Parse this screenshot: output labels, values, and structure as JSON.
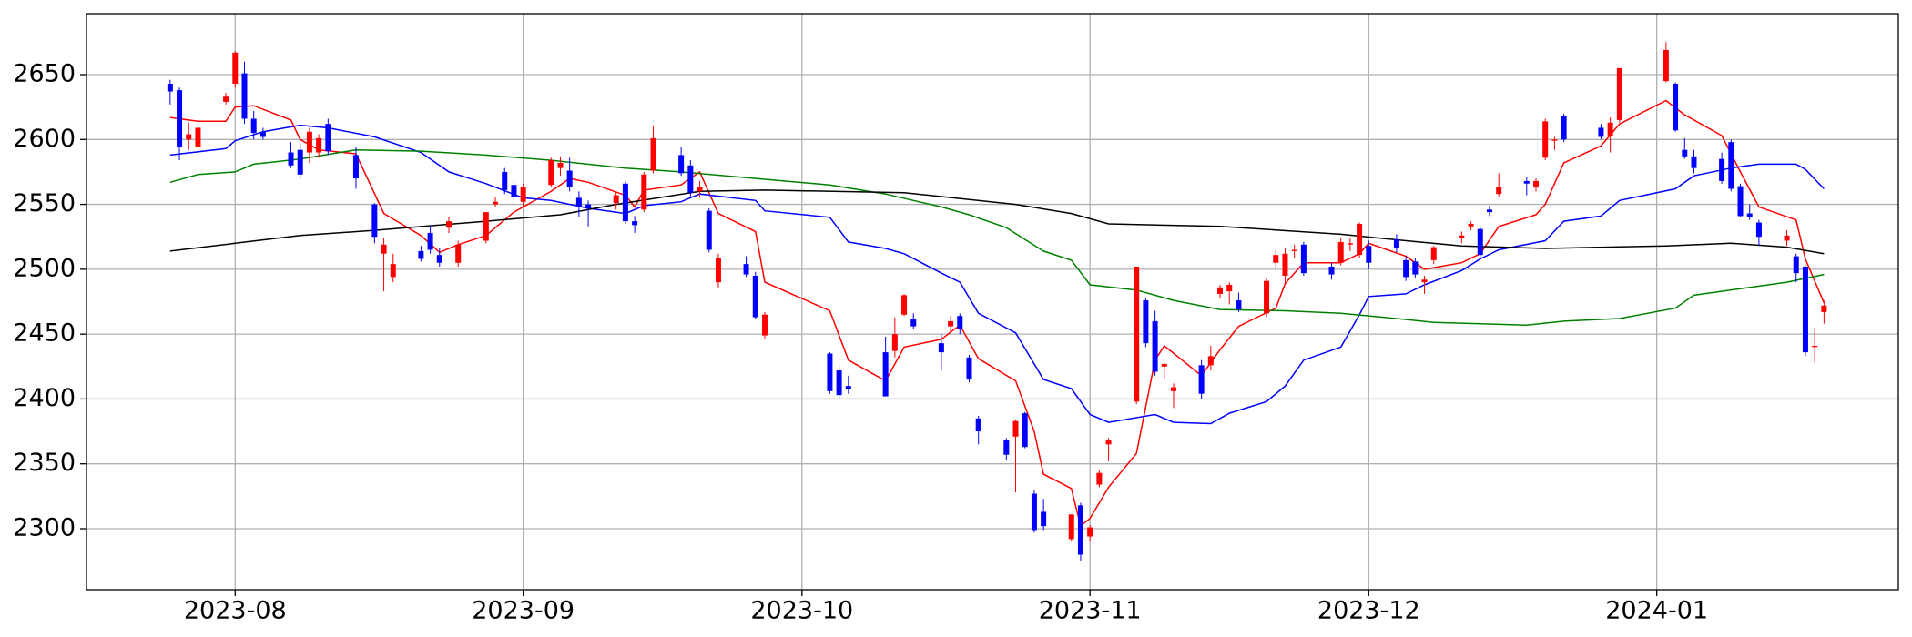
{
  "chart_data": {
    "type": "candlestick",
    "x": [
      "2023-07-25",
      "2023-07-26",
      "2023-07-27",
      "2023-07-28",
      "2023-07-31",
      "2023-08-01",
      "2023-08-02",
      "2023-08-03",
      "2023-08-04",
      "2023-08-07",
      "2023-08-08",
      "2023-08-09",
      "2023-08-10",
      "2023-08-11",
      "2023-08-14",
      "2023-08-16",
      "2023-08-17",
      "2023-08-18",
      "2023-08-21",
      "2023-08-22",
      "2023-08-23",
      "2023-08-24",
      "2023-08-25",
      "2023-08-28",
      "2023-08-29",
      "2023-08-30",
      "2023-08-31",
      "2023-09-01",
      "2023-09-04",
      "2023-09-05",
      "2023-09-06",
      "2023-09-07",
      "2023-09-08",
      "2023-09-11",
      "2023-09-12",
      "2023-09-13",
      "2023-09-14",
      "2023-09-15",
      "2023-09-18",
      "2023-09-19",
      "2023-09-20",
      "2023-09-21",
      "2023-09-22",
      "2023-09-25",
      "2023-09-26",
      "2023-09-27",
      "2023-10-04",
      "2023-10-05",
      "2023-10-06",
      "2023-10-10",
      "2023-10-11",
      "2023-10-12",
      "2023-10-13",
      "2023-10-16",
      "2023-10-17",
      "2023-10-18",
      "2023-10-19",
      "2023-10-20",
      "2023-10-23",
      "2023-10-24",
      "2023-10-25",
      "2023-10-26",
      "2023-10-27",
      "2023-10-30",
      "2023-10-31",
      "2023-11-01",
      "2023-11-02",
      "2023-11-03",
      "2023-11-06",
      "2023-11-07",
      "2023-11-08",
      "2023-11-09",
      "2023-11-10",
      "2023-11-13",
      "2023-11-14",
      "2023-11-15",
      "2023-11-16",
      "2023-11-17",
      "2023-11-20",
      "2023-11-21",
      "2023-11-22",
      "2023-11-23",
      "2023-11-24",
      "2023-11-27",
      "2023-11-28",
      "2023-11-29",
      "2023-11-30",
      "2023-12-01",
      "2023-12-04",
      "2023-12-05",
      "2023-12-06",
      "2023-12-07",
      "2023-12-08",
      "2023-12-11",
      "2023-12-12",
      "2023-12-13",
      "2023-12-14",
      "2023-12-15",
      "2023-12-18",
      "2023-12-19",
      "2023-12-20",
      "2023-12-21",
      "2023-12-22",
      "2023-12-26",
      "2023-12-27",
      "2023-12-28",
      "2024-01-02",
      "2024-01-03",
      "2024-01-04",
      "2024-01-05",
      "2024-01-08",
      "2024-01-09",
      "2024-01-10",
      "2024-01-11",
      "2024-01-12",
      "2024-01-15",
      "2024-01-16",
      "2024-01-17",
      "2024-01-18",
      "2024-01-19"
    ],
    "open": [
      2643,
      2638,
      2600,
      2594,
      2629,
      2643,
      2651,
      2616,
      2606,
      2590,
      2592,
      2590,
      2590,
      2612,
      2588,
      2550,
      2512,
      2494,
      2514,
      2528,
      2511,
      2532,
      2505,
      2522,
      2550,
      2575,
      2565,
      2552,
      2565,
      2578,
      2576,
      2555,
      2550,
      2551,
      2566,
      2537,
      2546,
      2576,
      2588,
      2580,
      2560,
      2545,
      2490,
      2504,
      2495,
      2449,
      2435,
      2422,
      2410,
      2436,
      2437,
      2465,
      2462,
      2443,
      2456,
      2464,
      2432,
      2385,
      2368,
      2371,
      2389,
      2327,
      2313,
      2292,
      2318,
      2294,
      2334,
      2365,
      2398,
      2476,
      2460,
      2425,
      2406,
      2426,
      2426,
      2481,
      2483,
      2476,
      2466,
      2505,
      2495,
      2514,
      2519,
      2502,
      2505,
      2519,
      2511,
      2518,
      2523,
      2507,
      2506,
      2490,
      2507,
      2524,
      2533,
      2531,
      2546,
      2558,
      2568,
      2563,
      2586,
      2599,
      2618,
      2609,
      2603,
      2615,
      2645,
      2643,
      2592,
      2587,
      2585,
      2598,
      2564,
      2543,
      2536,
      2522,
      2510,
      2502,
      2440,
      2467
    ],
    "high": [
      2646,
      2640,
      2613,
      2613,
      2636,
      2668,
      2660,
      2622,
      2609,
      2598,
      2597,
      2609,
      2604,
      2616,
      2594,
      2551,
      2524,
      2512,
      2518,
      2534,
      2516,
      2540,
      2522,
      2544,
      2556,
      2578,
      2569,
      2566,
      2586,
      2587,
      2586,
      2560,
      2553,
      2560,
      2568,
      2541,
      2575,
      2611,
      2594,
      2584,
      2568,
      2547,
      2512,
      2510,
      2498,
      2467,
      2436,
      2426,
      2418,
      2448,
      2463,
      2481,
      2466,
      2450,
      2464,
      2466,
      2434,
      2387,
      2370,
      2384,
      2390,
      2330,
      2323,
      2311,
      2320,
      2303,
      2345,
      2370,
      2502,
      2478,
      2468,
      2428,
      2412,
      2430,
      2441,
      2488,
      2490,
      2482,
      2493,
      2515,
      2516,
      2519,
      2521,
      2505,
      2524,
      2524,
      2536,
      2522,
      2527,
      2510,
      2509,
      2495,
      2518,
      2529,
      2537,
      2533,
      2549,
      2574,
      2571,
      2570,
      2616,
      2602,
      2620,
      2612,
      2617,
      2655,
      2675,
      2644,
      2601,
      2592,
      2590,
      2600,
      2566,
      2550,
      2538,
      2530,
      2512,
      2503,
      2455,
      2476
    ],
    "low": [
      2627,
      2584,
      2592,
      2585,
      2627,
      2640,
      2612,
      2600,
      2600,
      2578,
      2570,
      2582,
      2586,
      2588,
      2562,
      2520,
      2483,
      2490,
      2506,
      2512,
      2502,
      2528,
      2502,
      2520,
      2548,
      2558,
      2550,
      2548,
      2563,
      2572,
      2560,
      2540,
      2533,
      2546,
      2535,
      2528,
      2544,
      2574,
      2572,
      2555,
      2555,
      2513,
      2486,
      2494,
      2462,
      2446,
      2404,
      2400,
      2404,
      2402,
      2432,
      2464,
      2454,
      2422,
      2452,
      2450,
      2413,
      2365,
      2353,
      2328,
      2362,
      2297,
      2299,
      2290,
      2275,
      2290,
      2332,
      2352,
      2396,
      2440,
      2418,
      2415,
      2393,
      2400,
      2422,
      2478,
      2473,
      2467,
      2463,
      2500,
      2489,
      2509,
      2495,
      2492,
      2503,
      2514,
      2509,
      2500,
      2513,
      2491,
      2493,
      2481,
      2504,
      2520,
      2530,
      2509,
      2541,
      2556,
      2557,
      2560,
      2584,
      2592,
      2598,
      2600,
      2590,
      2613,
      2644,
      2606,
      2585,
      2574,
      2566,
      2560,
      2540,
      2538,
      2518,
      2518,
      2490,
      2433,
      2428,
      2458
    ],
    "close": [
      2637,
      2594,
      2604,
      2609,
      2633,
      2667,
      2616,
      2605,
      2602,
      2580,
      2573,
      2606,
      2601,
      2591,
      2570,
      2525,
      2519,
      2504,
      2508,
      2515,
      2505,
      2537,
      2519,
      2544,
      2552,
      2561,
      2556,
      2563,
      2584,
      2582,
      2563,
      2548,
      2547,
      2557,
      2537,
      2534,
      2573,
      2601,
      2574,
      2559,
      2563,
      2515,
      2509,
      2496,
      2463,
      2465,
      2406,
      2403,
      2408,
      2402,
      2450,
      2480,
      2456,
      2436,
      2460,
      2454,
      2415,
      2375,
      2357,
      2383,
      2363,
      2299,
      2302,
      2311,
      2280,
      2301,
      2343,
      2368,
      2502,
      2443,
      2421,
      2427,
      2409,
      2404,
      2433,
      2486,
      2488,
      2469,
      2491,
      2511,
      2512,
      2515,
      2497,
      2496,
      2521,
      2520,
      2535,
      2505,
      2516,
      2494,
      2496,
      2492,
      2517,
      2526,
      2535,
      2511,
      2544,
      2563,
      2566,
      2568,
      2614,
      2600,
      2600,
      2602,
      2613,
      2655,
      2669,
      2607,
      2587,
      2578,
      2568,
      2562,
      2541,
      2540,
      2525,
      2526,
      2497,
      2436,
      2441,
      2472
    ],
    "up_color": "#ff0000",
    "down_color": "#0000ff",
    "lines": [
      {
        "color": "#ff0000",
        "x": [
          "2023-07-25",
          "2023-07-28",
          "2023-07-31",
          "2023-08-01",
          "2023-08-03",
          "2023-08-07",
          "2023-08-08",
          "2023-08-10",
          "2023-08-14",
          "2023-08-17",
          "2023-08-21",
          "2023-08-23",
          "2023-08-25",
          "2023-08-28",
          "2023-08-31",
          "2023-09-04",
          "2023-09-06",
          "2023-09-08",
          "2023-09-12",
          "2023-09-13",
          "2023-09-14",
          "2023-09-18",
          "2023-09-20",
          "2023-09-22",
          "2023-09-26",
          "2023-09-27",
          "2023-10-04",
          "2023-10-06",
          "2023-10-10",
          "2023-10-12",
          "2023-10-16",
          "2023-10-18",
          "2023-10-20",
          "2023-10-24",
          "2023-10-26",
          "2023-10-27",
          "2023-10-30",
          "2023-10-31",
          "2023-11-01",
          "2023-11-03",
          "2023-11-06",
          "2023-11-08",
          "2023-11-09",
          "2023-11-13",
          "2023-11-15",
          "2023-11-17",
          "2023-11-21",
          "2023-11-22",
          "2023-11-24",
          "2023-11-28",
          "2023-11-30",
          "2023-12-01",
          "2023-12-05",
          "2023-12-07",
          "2023-12-11",
          "2023-12-13",
          "2023-12-15",
          "2023-12-19",
          "2023-12-20",
          "2023-12-22",
          "2023-12-26",
          "2023-12-28",
          "2024-01-02",
          "2024-01-04",
          "2024-01-08",
          "2024-01-10",
          "2024-01-12",
          "2024-01-16",
          "2024-01-17",
          "2024-01-19"
        ],
        "values": [
          2617,
          2614,
          2614,
          2625,
          2626,
          2615,
          2600,
          2592,
          2589,
          2543,
          2526,
          2513,
          2519,
          2526,
          2544,
          2560,
          2570,
          2567,
          2557,
          2548,
          2561,
          2565,
          2575,
          2543,
          2529,
          2490,
          2468,
          2430,
          2414,
          2440,
          2446,
          2457,
          2431,
          2414,
          2375,
          2342,
          2331,
          2302,
          2308,
          2332,
          2358,
          2430,
          2441,
          2418,
          2438,
          2456,
          2470,
          2489,
          2505,
          2505,
          2512,
          2520,
          2510,
          2500,
          2505,
          2512,
          2533,
          2542,
          2550,
          2582,
          2595,
          2612,
          2630,
          2619,
          2603,
          2575,
          2548,
          2538,
          2508,
          2474
        ]
      },
      {
        "color": "#0000ff",
        "x": [
          "2023-07-25",
          "2023-07-31",
          "2023-08-01",
          "2023-08-04",
          "2023-08-08",
          "2023-08-11",
          "2023-08-16",
          "2023-08-21",
          "2023-08-24",
          "2023-08-28",
          "2023-09-01",
          "2023-09-04",
          "2023-09-08",
          "2023-09-12",
          "2023-09-14",
          "2023-09-18",
          "2023-09-20",
          "2023-09-26",
          "2023-09-27",
          "2023-10-04",
          "2023-10-06",
          "2023-10-10",
          "2023-10-12",
          "2023-10-16",
          "2023-10-18",
          "2023-10-20",
          "2023-10-24",
          "2023-10-27",
          "2023-10-30",
          "2023-11-01",
          "2023-11-03",
          "2023-11-08",
          "2023-11-10",
          "2023-11-14",
          "2023-11-16",
          "2023-11-20",
          "2023-11-22",
          "2023-11-24",
          "2023-11-28",
          "2023-11-30",
          "2023-12-01",
          "2023-12-05",
          "2023-12-07",
          "2023-12-11",
          "2023-12-13",
          "2023-12-15",
          "2023-12-20",
          "2023-12-22",
          "2023-12-26",
          "2023-12-28",
          "2024-01-03",
          "2024-01-05",
          "2024-01-09",
          "2024-01-12",
          "2024-01-16",
          "2024-01-17",
          "2024-01-19"
        ],
        "values": [
          2588,
          2593,
          2599,
          2606,
          2611,
          2609,
          2602,
          2590,
          2575,
          2566,
          2555,
          2553,
          2547,
          2543,
          2549,
          2552,
          2558,
          2553,
          2545,
          2540,
          2521,
          2516,
          2512,
          2497,
          2490,
          2466,
          2451,
          2415,
          2408,
          2388,
          2382,
          2388,
          2382,
          2381,
          2389,
          2398,
          2410,
          2430,
          2440,
          2465,
          2479,
          2481,
          2488,
          2499,
          2508,
          2515,
          2522,
          2537,
          2541,
          2553,
          2562,
          2572,
          2578,
          2581,
          2581,
          2577,
          2562
        ]
      },
      {
        "color": "#008000",
        "x": [
          "2023-07-25",
          "2023-07-28",
          "2023-08-01",
          "2023-08-03",
          "2023-08-08",
          "2023-08-14",
          "2023-08-21",
          "2023-08-28",
          "2023-09-04",
          "2023-09-12",
          "2023-09-18",
          "2023-09-26",
          "2023-10-04",
          "2023-10-10",
          "2023-10-16",
          "2023-10-19",
          "2023-10-23",
          "2023-10-27",
          "2023-10-30",
          "2023-11-01",
          "2023-11-06",
          "2023-11-10",
          "2023-11-15",
          "2023-11-22",
          "2023-11-28",
          "2023-12-04",
          "2023-12-08",
          "2023-12-18",
          "2023-12-22",
          "2023-12-28",
          "2024-01-03",
          "2024-01-05",
          "2024-01-10",
          "2024-01-15",
          "2024-01-19"
        ],
        "values": [
          2567,
          2573,
          2575,
          2581,
          2585,
          2592,
          2591,
          2588,
          2584,
          2578,
          2575,
          2570,
          2565,
          2558,
          2548,
          2542,
          2532,
          2514,
          2507,
          2488,
          2484,
          2476,
          2469,
          2468,
          2466,
          2462,
          2459,
          2457,
          2460,
          2462,
          2470,
          2480,
          2485,
          2490,
          2496
        ]
      },
      {
        "color": "#000000",
        "x": [
          "2023-07-25",
          "2023-08-01",
          "2023-08-08",
          "2023-08-16",
          "2023-08-28",
          "2023-09-05",
          "2023-09-11",
          "2023-09-20",
          "2023-09-27",
          "2023-10-12",
          "2023-10-24",
          "2023-10-30",
          "2023-11-03",
          "2023-11-15",
          "2023-11-28",
          "2023-12-05",
          "2023-12-11",
          "2023-12-20",
          "2024-01-02",
          "2024-01-09",
          "2024-01-15",
          "2024-01-19"
        ],
        "values": [
          2514,
          2520,
          2526,
          2530,
          2537,
          2542,
          2550,
          2560,
          2561,
          2559,
          2550,
          2543,
          2535,
          2533,
          2527,
          2522,
          2518,
          2516,
          2518,
          2520,
          2517,
          2512
        ]
      }
    ],
    "xlim": [
      "2023-07-16",
      "2024-01-27"
    ],
    "ylim": [
      2253,
      2697
    ],
    "xticks": [
      {
        "value": "2023-08-01",
        "label": "2023-08"
      },
      {
        "value": "2023-09-01",
        "label": "2023-09"
      },
      {
        "value": "2023-10-01",
        "label": "2023-10"
      },
      {
        "value": "2023-11-01",
        "label": "2023-11"
      },
      {
        "value": "2023-12-01",
        "label": "2023-12"
      },
      {
        "value": "2024-01-01",
        "label": "2024-01"
      }
    ],
    "yticks": [
      2300,
      2350,
      2400,
      2450,
      2500,
      2550,
      2600,
      2650
    ],
    "grid": true
  }
}
